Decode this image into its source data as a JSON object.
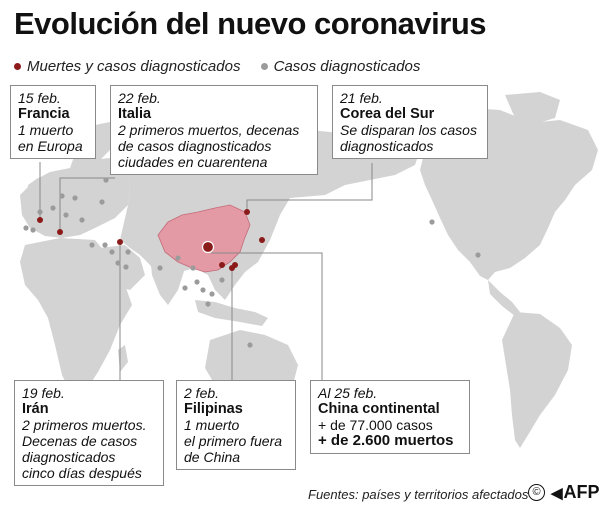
{
  "title": "Evolución del nuevo coronavirus",
  "legend": {
    "deaths_label": "Muertes y casos diagnosticados",
    "cases_label": "Casos diagnosticados",
    "deaths_color": "#8b1a1a",
    "cases_color": "#9b9b9b"
  },
  "colors": {
    "land": "#d3d3d3",
    "china": "#e39aa5",
    "china_border": "#c46a79",
    "leader": "#8a8a8a"
  },
  "callouts": {
    "francia": {
      "date": "15 feb.",
      "place": "Francia",
      "desc": [
        "1 muerto",
        "en Europa"
      ]
    },
    "italia": {
      "date": "22 feb.",
      "place": "Italia",
      "desc": [
        "2 primeros muertos, decenas",
        "de casos diagnosticados",
        "ciudades en cuarentena"
      ]
    },
    "corea": {
      "date": "21 feb.",
      "place": "Corea del Sur",
      "desc": [
        "Se disparan los casos",
        "diagnosticados"
      ]
    },
    "iran": {
      "date": "19 feb.",
      "place": "Irán",
      "desc": [
        "2 primeros muertos.",
        "Decenas de casos",
        "diagnosticados",
        "cinco días después"
      ]
    },
    "filipinas": {
      "date": "2 feb.",
      "place": "Filipinas",
      "desc": [
        "1 muerto",
        "el primero fuera",
        "de China"
      ]
    },
    "china": {
      "date": "Al 25 feb.",
      "place": "China continental",
      "line1": "+ de 77.000 casos",
      "line2": "+ de 2.600 muertos"
    }
  },
  "footer": {
    "source": "Fuentes: países y territorios afectados",
    "copyright_symbol": "©",
    "agency": "AFP"
  }
}
